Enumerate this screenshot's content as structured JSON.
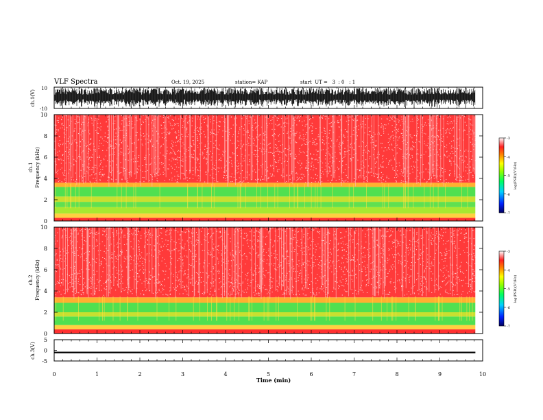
{
  "header": {
    "title": "VLF Spectra",
    "date": "Oct. 19, 2025",
    "station": "station= KAP",
    "start_ut": "start  UT =   3  : 0   : 1"
  },
  "chart_data": {
    "type": "heatmap",
    "x_axis": {
      "label": "Time  (min)",
      "range": [
        0,
        10
      ],
      "ticks": [
        "0",
        "1",
        "2",
        "3",
        "4",
        "5",
        "6",
        "7",
        "8",
        "9",
        "10"
      ],
      "data_end": 9.83
    },
    "waveform_ch1": {
      "ylabel": "ch.1(V)",
      "ylim": [
        -10,
        10
      ],
      "tick_top": "10",
      "tick_bottom": "-10"
    },
    "spectrogram_ch1": {
      "ylabel_line1": "ch.1",
      "ylabel_line2": "Frequency  (kHz)",
      "ylim": [
        0,
        10
      ],
      "ticks": [
        "0",
        "2",
        "4",
        "6",
        "8",
        "10"
      ],
      "bands": [
        {
          "from": 0.0,
          "to": 0.3,
          "color": "#ff3030"
        },
        {
          "from": 0.3,
          "to": 0.7,
          "color": "#ffd040"
        },
        {
          "from": 0.7,
          "to": 1.3,
          "color": "#a8e830"
        },
        {
          "from": 1.3,
          "to": 1.8,
          "color": "#60e050"
        },
        {
          "from": 1.8,
          "to": 2.3,
          "color": "#c8e030"
        },
        {
          "from": 2.3,
          "to": 3.2,
          "color": "#50e050"
        },
        {
          "from": 3.2,
          "to": 3.6,
          "color": "#ffb030"
        },
        {
          "from": 3.6,
          "to": 10.0,
          "color": "#ff3a3a"
        }
      ]
    },
    "spectrogram_ch2": {
      "ylabel_line1": "ch.2",
      "ylabel_line2": "Frequency  (kHz)",
      "ylim": [
        0,
        10
      ],
      "ticks": [
        "0",
        "2",
        "4",
        "6",
        "8",
        "10"
      ],
      "bands": [
        {
          "from": 0.0,
          "to": 0.4,
          "color": "#ff3030"
        },
        {
          "from": 0.4,
          "to": 0.8,
          "color": "#ffd040"
        },
        {
          "from": 0.8,
          "to": 1.6,
          "color": "#50e050"
        },
        {
          "from": 1.6,
          "to": 2.0,
          "color": "#c8e030"
        },
        {
          "from": 2.0,
          "to": 2.9,
          "color": "#50e050"
        },
        {
          "from": 2.9,
          "to": 3.4,
          "color": "#ffb030"
        },
        {
          "from": 3.4,
          "to": 10.0,
          "color": "#ff3a3a"
        }
      ]
    },
    "waveform_ch3": {
      "ylabel": "ch.3(V)",
      "ylim": [
        -5,
        5
      ],
      "ticks": [
        "5",
        "0",
        "-5"
      ],
      "level": -1.0,
      "band_halfwidth": 0.35
    },
    "colorbar": {
      "label": "log(PSD)(V²/Hz)",
      "range": [
        -7,
        -3
      ],
      "ticks": [
        "-3",
        "-4",
        "-5",
        "-6",
        "-7"
      ]
    }
  }
}
